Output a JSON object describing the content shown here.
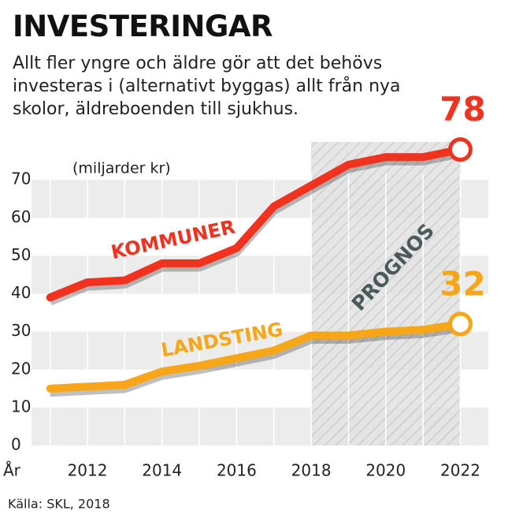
{
  "chart_data": {
    "type": "line",
    "title": "INVESTERINGAR",
    "subtitle": "Allt fler yngre och äldre gör att det behövs investeras i (alternativt byggas) allt från nya skolor, äldreboenden till sjukhus.",
    "y_axis_label": "(miljarder kr)",
    "x_axis_label": "År",
    "source": "Källa: SKL, 2018",
    "x": [
      2011,
      2012,
      2013,
      2014,
      2015,
      2016,
      2017,
      2018,
      2019,
      2020,
      2021,
      2022
    ],
    "series": [
      {
        "name": "KOMMUNER",
        "color": "#f0321e",
        "values": [
          39,
          43,
          43.5,
          48,
          48,
          52,
          63,
          68.5,
          74,
          76,
          76,
          78
        ]
      },
      {
        "name": "LANDSTING",
        "color": "#f7a618",
        "values": [
          15,
          15.5,
          16,
          19.5,
          21,
          23,
          25,
          29,
          29,
          30,
          30.5,
          32
        ]
      }
    ],
    "forecast_region": {
      "label": "PROGNOS",
      "from": 2018,
      "to": 2022
    },
    "xlim": [
      2010.5,
      2022.75
    ],
    "xticks": [
      2012,
      2014,
      2016,
      2018,
      2020,
      2022
    ],
    "ylim": [
      0,
      80
    ],
    "yticks": [
      0,
      10,
      20,
      30,
      40,
      50,
      60,
      70
    ]
  }
}
